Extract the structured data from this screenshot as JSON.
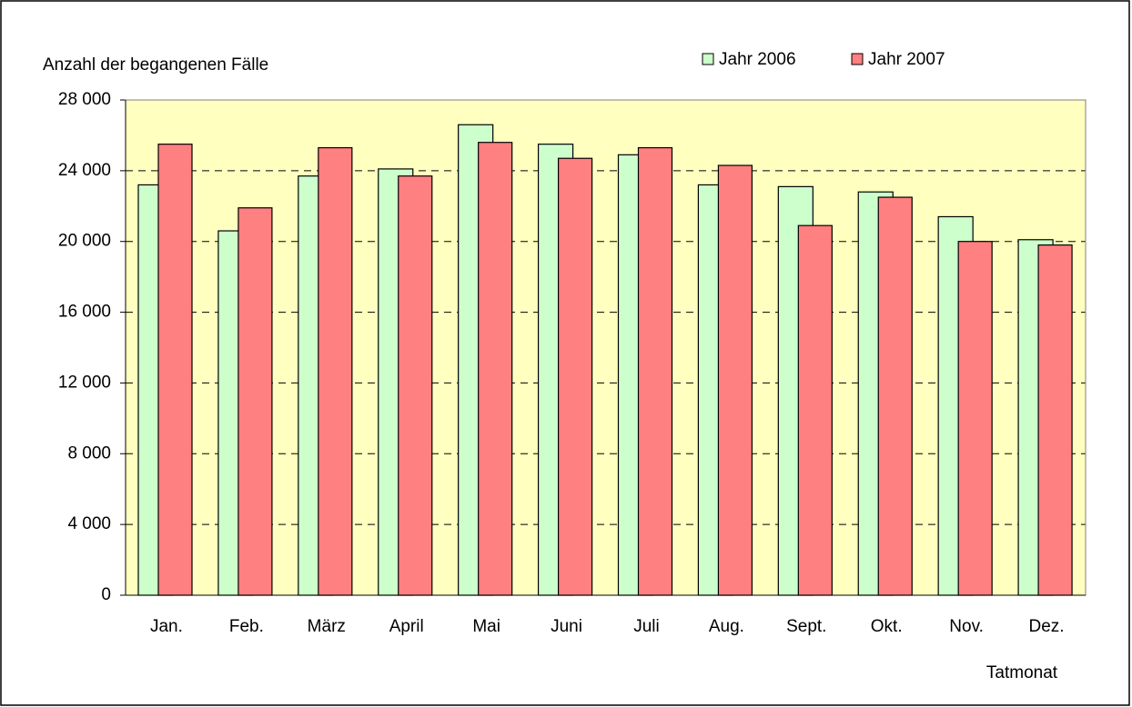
{
  "chart_data": {
    "type": "bar",
    "y_axis_title": "Anzahl der begangenen Fälle",
    "x_axis_title": "Tatmonat",
    "categories": [
      "Jan.",
      "Feb.",
      "März",
      "April",
      "Mai",
      "Juni",
      "Juli",
      "Aug.",
      "Sept.",
      "Okt.",
      "Nov.",
      "Dez."
    ],
    "series": [
      {
        "name": "Jahr 2006",
        "color": "#ccffcc",
        "values": [
          23200,
          20600,
          23700,
          24100,
          26600,
          25500,
          24900,
          23200,
          23100,
          22800,
          21400,
          20100
        ]
      },
      {
        "name": "Jahr 2007",
        "color": "#ff8080",
        "values": [
          25500,
          21900,
          25300,
          23700,
          25600,
          24700,
          25300,
          24300,
          20900,
          22500,
          20000,
          19800
        ]
      }
    ],
    "ylim": [
      0,
      28000
    ],
    "yticks": [
      0,
      {
        "value": 4000,
        "label": "4 000"
      },
      {
        "value": 8000,
        "label": "8 000"
      },
      {
        "value": 12000,
        "label": "12 000"
      },
      {
        "value": 16000,
        "label": "16 000"
      },
      {
        "value": 20000,
        "label": "20 000"
      },
      {
        "value": 24000,
        "label": "24 000"
      },
      {
        "value": 28000,
        "label": "28 000"
      }
    ],
    "grid": true,
    "plot_background": "#ffffc0"
  }
}
